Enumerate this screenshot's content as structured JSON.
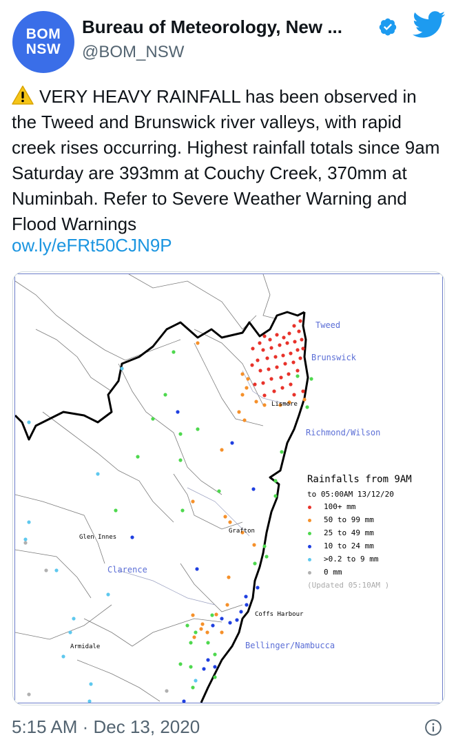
{
  "account": {
    "avatar_line1": "BOM",
    "avatar_line2": "NSW",
    "name": "Bureau of Meteorology, New ...",
    "handle": "@BOM_NSW"
  },
  "tweet": {
    "text": "VERY HEAVY RAINFALL has been observed in the Tweed and Brunswick river valleys, with rapid creek rises occurring. Highest rainfall totals since 9am Saturday are 393mm at Couchy Creek, 370mm at Numinbah. Refer to Severe Weather Warning and Flood Warnings",
    "link": "ow.ly/eFRt50CJN9P",
    "timestamp": "5:15 AM · Dec 13, 2020"
  },
  "map": {
    "regions": {
      "tweed": "Tweed",
      "brunswick": "Brunswick",
      "richmond": "Richmond/Wilson",
      "clarence": "Clarence",
      "bellinger": "Bellinger/Nambucca"
    },
    "towns": {
      "lismore": "Lismore",
      "glen_innes": "Glen Innes",
      "grafton": "Grafton",
      "coffs": "Coffs Harbour",
      "armidale": "Armidale"
    },
    "legend": {
      "title": "Rainfalls from 9AM",
      "subtitle": "to 05:00AM 13/12/20",
      "items": [
        {
          "label": "100+ mm",
          "color": "#e8322a"
        },
        {
          "label": "50  to 99 mm",
          "color": "#f5902a"
        },
        {
          "label": "25  to 49 mm",
          "color": "#4ed84e"
        },
        {
          "label": "10  to 24 mm",
          "color": "#1f3fe0"
        },
        {
          "label": ">0.2 to 9 mm",
          "color": "#5ec8ee"
        },
        {
          "label": "0 mm",
          "color": "#b0b0b0"
        }
      ],
      "updated": "(Updated 05:10AM  )"
    }
  },
  "icons": {
    "verified": "verified-badge-icon",
    "twitter": "twitter-bird-icon",
    "warning": "warning-icon",
    "info": "info-icon"
  }
}
